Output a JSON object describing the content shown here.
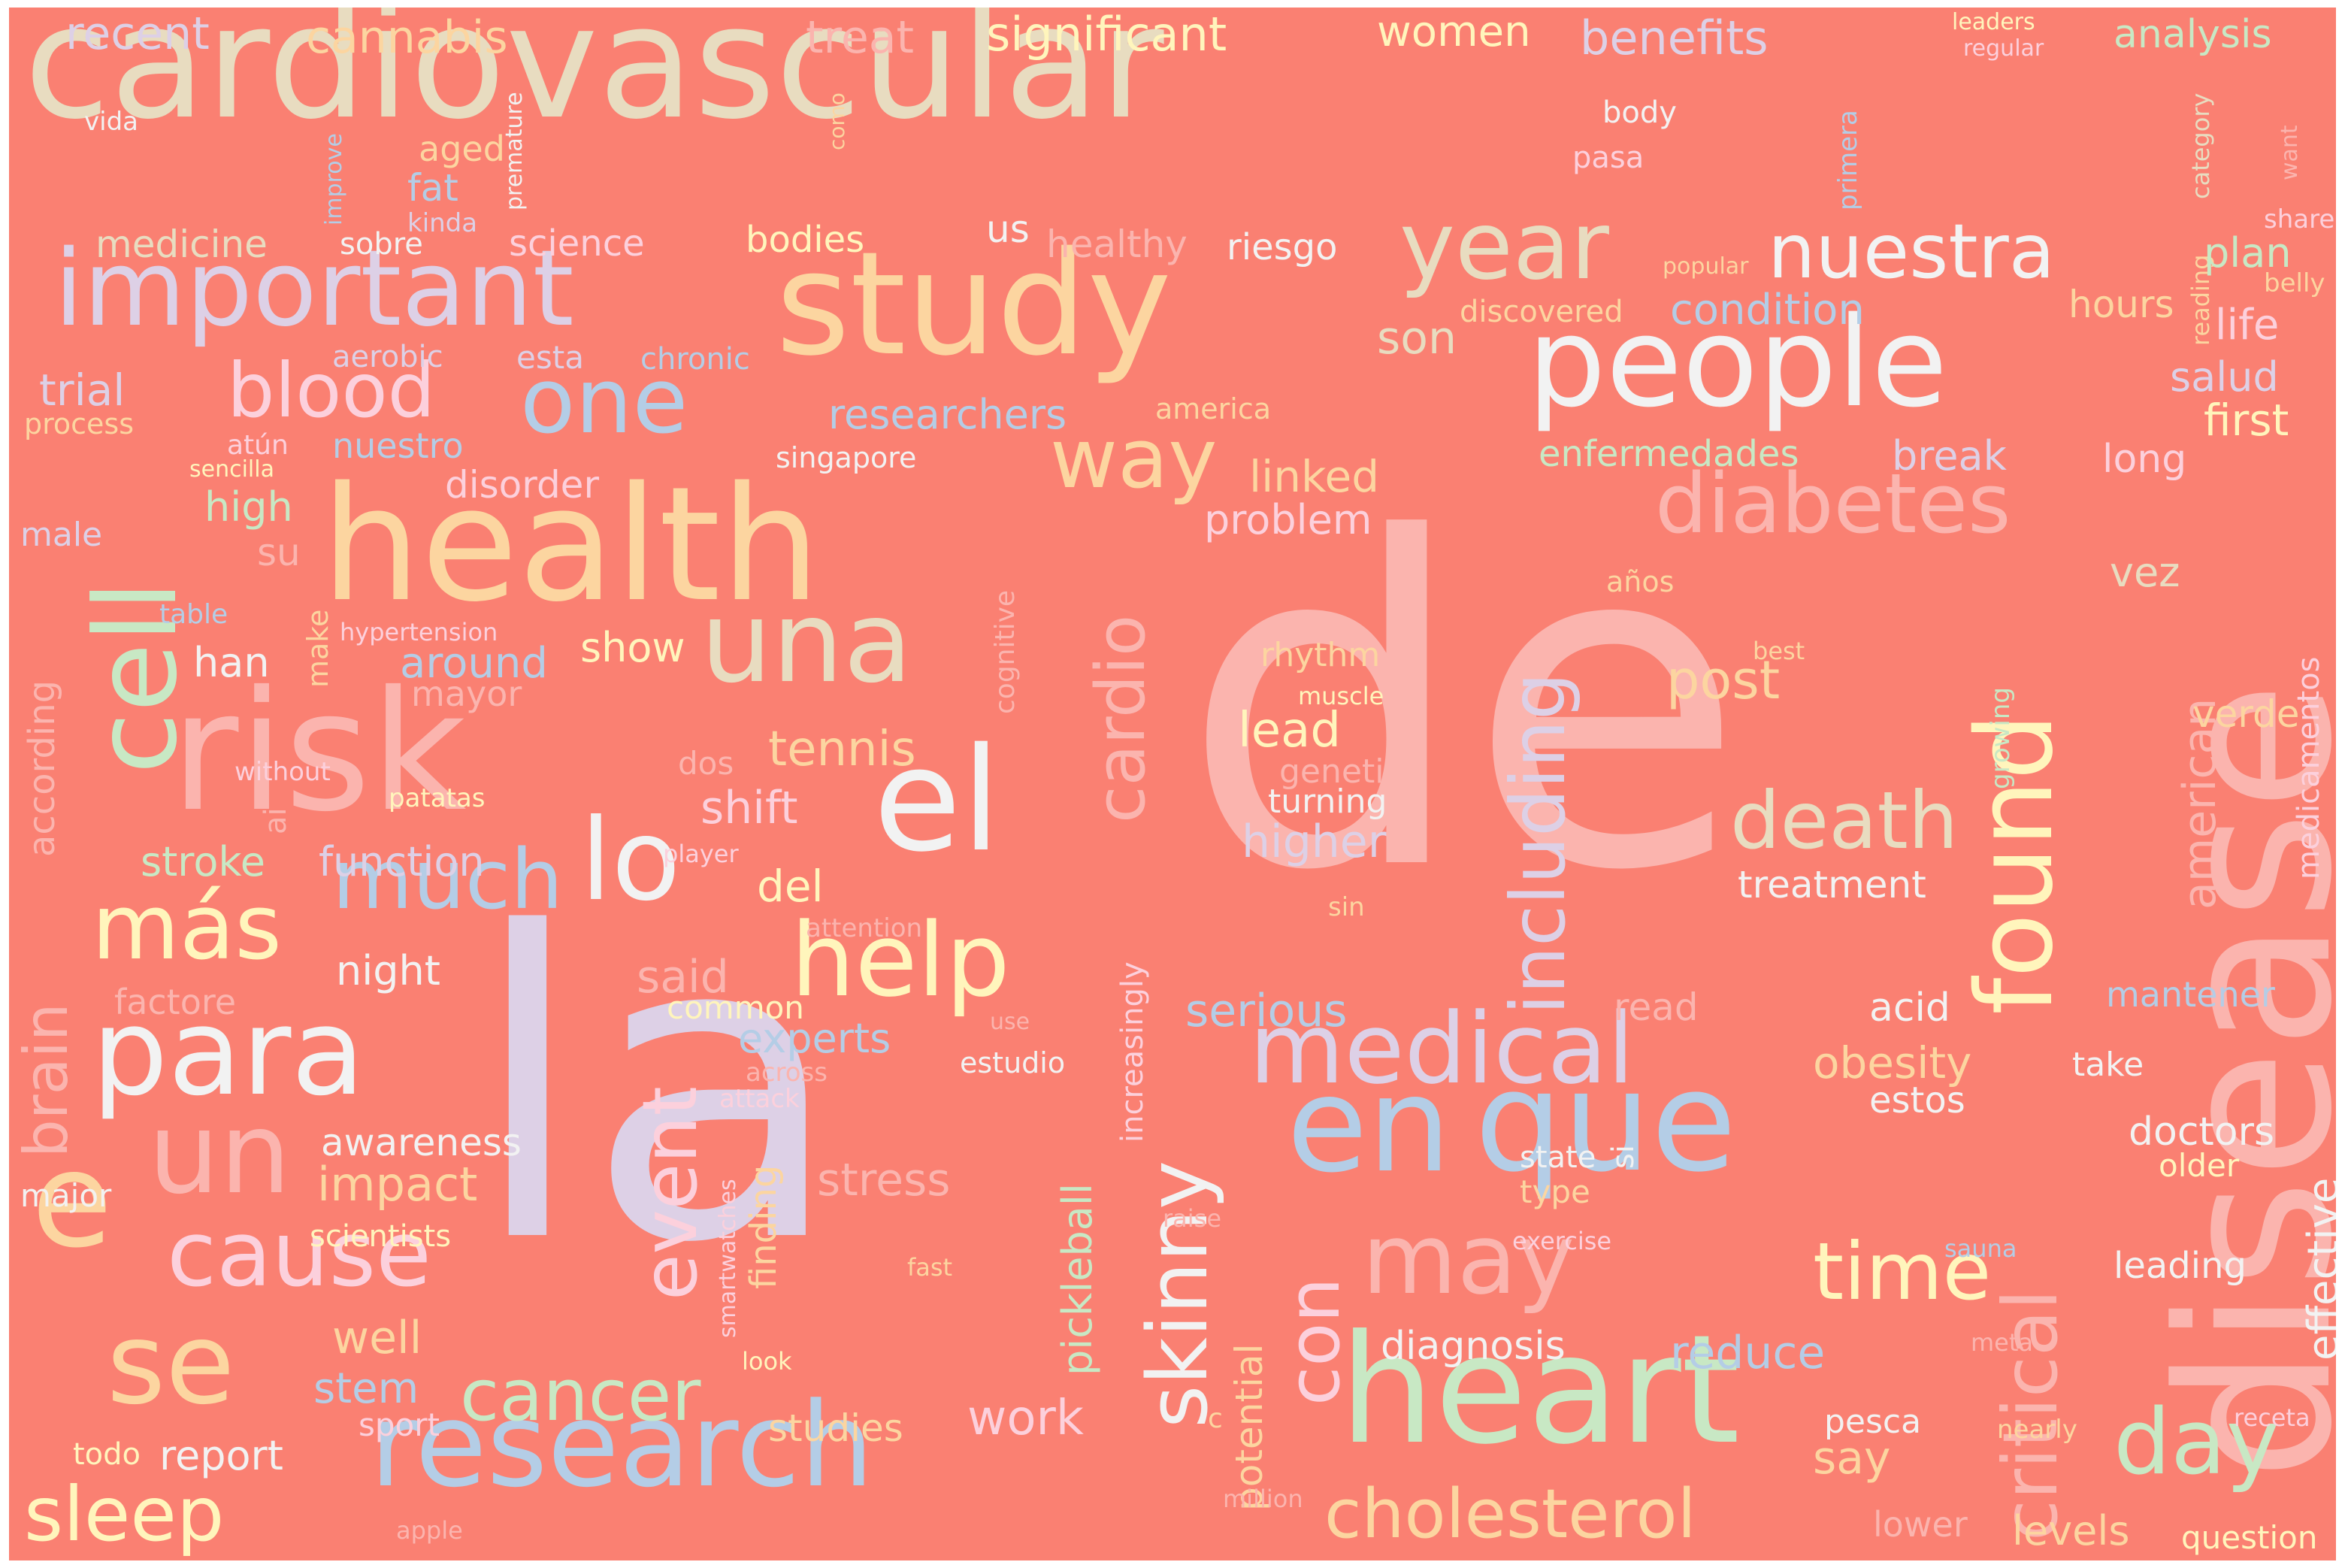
{
  "title": "",
  "palette": {
    "background": "#fa8072",
    "cream": "#e8dcc0",
    "peach": "#fcd5a0",
    "lavender": "#ddd0e6",
    "blue": "#b4cde6",
    "mint": "#c8e8c4",
    "pink": "#fbb4ae",
    "yellow": "#fff5bc",
    "white": "#f2f2f2",
    "lightpink": "#fcd0dc"
  },
  "words": {
    "cardiovascular": "cardiovascular",
    "de": "de",
    "la": "la",
    "disease": "disease",
    "study": "study",
    "health": "health",
    "risk": "risk",
    "heart": "heart",
    "people": "people",
    "important": "important",
    "para": "para",
    "research": "research",
    "en": "en",
    "que": "que",
    "una": "una",
    "cell": "cell",
    "el": "el",
    "found": "found",
    "medical": "medical",
    "year": "year",
    "nuestra": "nuestra",
    "one": "one",
    "diabetes": "diabetes",
    "e": "e",
    "se": "se",
    "un": "un",
    "cause": "cause",
    "mucho": "much",
    "lo": "lo",
    "mas": "más",
    "help": "help",
    "skinny": "skinny",
    "may": "may",
    "including": "including",
    "death": "death",
    "cardio": "cardio",
    "blood": "blood",
    "way": "way",
    "cholesterol": "cholesterol",
    "day": "day",
    "time": "time",
    "critical": "critical",
    "cancer": "cancer",
    "sleep": "sleep",
    "event": "event",
    "con": "con",
    "brain": "brain",
    "recent": "recent",
    "cannabis": "cannabis",
    "treat": "treat",
    "significant": "significant",
    "women": "women",
    "benefits": "benefits",
    "leaders": "leaders",
    "regular": "regular",
    "analysis": "analysis",
    "vida": "vida",
    "como": "como",
    "body": "body",
    "pasa": "pasa",
    "aged": "aged",
    "fat": "fat",
    "kinda": "kinda",
    "improve": "improve",
    "premature": "premature",
    "primera": "primera",
    "category": "category",
    "reading": "reading",
    "want": "want",
    "share": "share",
    "belly": "belly",
    "medicine": "medicine",
    "sobre": "sobre",
    "science": "science",
    "bodies": "bodies",
    "us": "us",
    "healthy": "healthy",
    "riesgo": "riesgo",
    "popular": "popular",
    "plan": "plan",
    "discovered": "discovered",
    "condition": "condition",
    "hours": "hours",
    "life": "life",
    "aerobic": "aerobic",
    "esta": "esta",
    "chronic": "chronic",
    "son": "son",
    "salud": "salud",
    "trial": "trial",
    "researchers": "researchers",
    "america": "america",
    "first": "first",
    "process": "process",
    "atun": "atún",
    "nuestro": "nuestro",
    "singapore": "singapore",
    "enfermedades": "enfermedades",
    "break": "break",
    "long": "long",
    "sencilla": "sencilla",
    "disorder": "disorder",
    "linked": "linked",
    "high": "high",
    "problem": "problem",
    "male": "male",
    "su": "su",
    "anos": "años",
    "vez": "vez",
    "table": "table",
    "hypertension": "hypertension",
    "cognitive": "cognitive",
    "rhythm": "rhythm",
    "best": "best",
    "han": "han",
    "make": "make",
    "around": "around",
    "show": "show",
    "mayor": "mayor",
    "muscle": "muscle",
    "post": "post",
    "american": "american",
    "verde": "verde",
    "medicamentos": "medicamentos",
    "growing": "growing",
    "according": "according",
    "tennis": "tennis",
    "lead": "lead",
    "without": "without",
    "dos": "dos",
    "genetic": "genetic",
    "ai": "ai",
    "patatas": "patatas",
    "shift": "shift",
    "turning": "turning",
    "stroke": "stroke",
    "function": "function",
    "player": "player",
    "higher": "higher",
    "treatment": "treatment",
    "del": "del",
    "attention": "attention",
    "sin": "sin",
    "night": "night",
    "factore": "factore",
    "said": "said",
    "common": "common",
    "serious": "serious",
    "read": "read",
    "acid": "acid",
    "mantener": "mantener",
    "use": "use",
    "experts": "experts",
    "across": "across",
    "estudio": "estudio",
    "obesity": "obesity",
    "take": "take",
    "attack": "attack",
    "increasingly": "increasingly",
    "estos": "estos",
    "awareness": "awareness",
    "doctors": "doctors",
    "older": "older",
    "effective": "effective",
    "impact": "impact",
    "smartwatches": "smartwatches",
    "stress": "stress",
    "state": "state",
    "si": "si",
    "major": "major",
    "finding": "finding",
    "type": "type",
    "raise": "raise",
    "scientists": "scientists",
    "exercise": "exercise",
    "sauna": "sauna",
    "pickleball": "pickleball",
    "fast": "fast",
    "leading": "leading",
    "potential": "potential",
    "well": "well",
    "diagnosis": "diagnosis",
    "meta": "meta",
    "stem": "stem",
    "reduce": "reduce",
    "look": "look",
    "c": "c",
    "sport": "sport",
    "studies": "studies",
    "work": "work",
    "pesca": "pesca",
    "nearly": "nearly",
    "receta": "receta",
    "todo": "todo",
    "report": "report",
    "say": "say",
    "million": "million",
    "apple": "apple",
    "lower": "lower",
    "levels": "levels",
    "question": "question"
  }
}
